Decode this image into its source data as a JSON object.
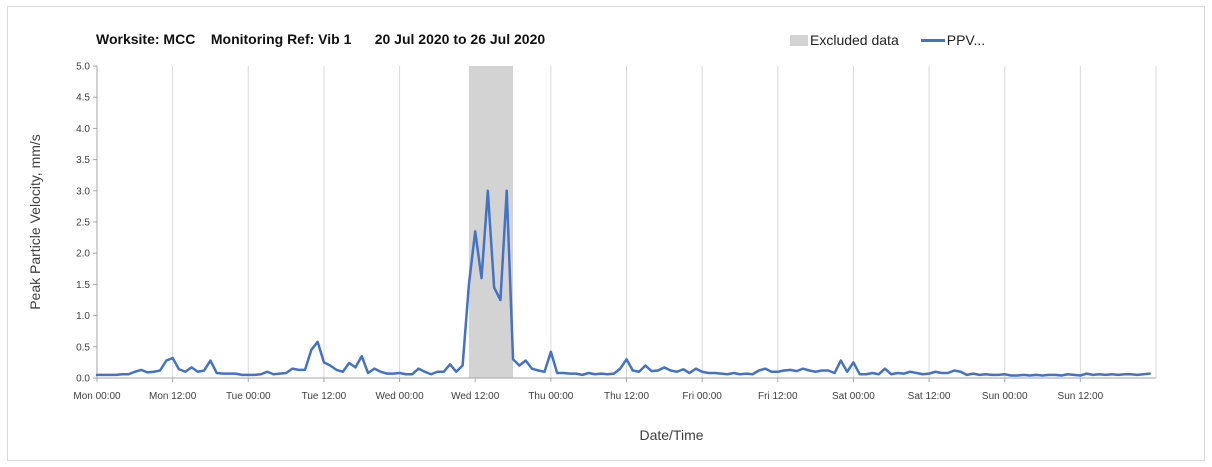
{
  "chart_data": {
    "type": "line",
    "title": "Worksite: MCC    Monitoring Ref: Vib 1      20 Jul 2020 to 26 Jul 2020",
    "xlabel": "Date/Time",
    "ylabel": "Peak Particle Velocity, mm/s",
    "ylim": [
      0,
      5
    ],
    "yticks": [
      "0.0",
      "0.5",
      "1.0",
      "1.5",
      "2.0",
      "2.5",
      "3.0",
      "3.5",
      "4.0",
      "4.5",
      "5.0"
    ],
    "xlim_hours": [
      0,
      168
    ],
    "xticks": [
      {
        "h": 0,
        "label": "Mon 00:00"
      },
      {
        "h": 12,
        "label": "Mon 12:00"
      },
      {
        "h": 24,
        "label": "Tue 00:00"
      },
      {
        "h": 36,
        "label": "Tue 12:00"
      },
      {
        "h": 48,
        "label": "Wed 00:00"
      },
      {
        "h": 60,
        "label": "Wed 12:00"
      },
      {
        "h": 72,
        "label": "Thu 00:00"
      },
      {
        "h": 84,
        "label": "Thu 12:00"
      },
      {
        "h": 96,
        "label": "Fri 00:00"
      },
      {
        "h": 108,
        "label": "Fri 12:00"
      },
      {
        "h": 120,
        "label": "Sat 00:00"
      },
      {
        "h": 132,
        "label": "Sat 12:00"
      },
      {
        "h": 144,
        "label": "Sun 00:00"
      },
      {
        "h": 156,
        "label": "Sun 12:00"
      }
    ],
    "grid": "vertical",
    "legend_position": "top-right",
    "excluded_region_hours": [
      59,
      66
    ],
    "series": [
      {
        "name": "Excluded data",
        "color": "#d3d3d3",
        "kind": "band"
      },
      {
        "name": "PPV...",
        "color": "#4472c4",
        "kind": "line",
        "points": [
          [
            0,
            0.05
          ],
          [
            1,
            0.05
          ],
          [
            2,
            0.05
          ],
          [
            3,
            0.05
          ],
          [
            4,
            0.06
          ],
          [
            5,
            0.06
          ],
          [
            6,
            0.1
          ],
          [
            7,
            0.13
          ],
          [
            8,
            0.09
          ],
          [
            9,
            0.1
          ],
          [
            10,
            0.12
          ],
          [
            11,
            0.28
          ],
          [
            12,
            0.32
          ],
          [
            13,
            0.14
          ],
          [
            14,
            0.1
          ],
          [
            15,
            0.17
          ],
          [
            16,
            0.1
          ],
          [
            17,
            0.12
          ],
          [
            18,
            0.28
          ],
          [
            19,
            0.08
          ],
          [
            20,
            0.07
          ],
          [
            21,
            0.07
          ],
          [
            22,
            0.07
          ],
          [
            23,
            0.05
          ],
          [
            24,
            0.05
          ],
          [
            25,
            0.05
          ],
          [
            26,
            0.06
          ],
          [
            27,
            0.1
          ],
          [
            28,
            0.06
          ],
          [
            29,
            0.07
          ],
          [
            30,
            0.08
          ],
          [
            31,
            0.15
          ],
          [
            32,
            0.13
          ],
          [
            33,
            0.13
          ],
          [
            34,
            0.45
          ],
          [
            35,
            0.58
          ],
          [
            36,
            0.25
          ],
          [
            37,
            0.2
          ],
          [
            38,
            0.13
          ],
          [
            39,
            0.1
          ],
          [
            40,
            0.24
          ],
          [
            41,
            0.17
          ],
          [
            42,
            0.35
          ],
          [
            43,
            0.08
          ],
          [
            44,
            0.15
          ],
          [
            45,
            0.1
          ],
          [
            46,
            0.07
          ],
          [
            47,
            0.07
          ],
          [
            48,
            0.08
          ],
          [
            49,
            0.06
          ],
          [
            50,
            0.06
          ],
          [
            51,
            0.15
          ],
          [
            52,
            0.1
          ],
          [
            53,
            0.06
          ],
          [
            54,
            0.1
          ],
          [
            55,
            0.1
          ],
          [
            56,
            0.22
          ],
          [
            57,
            0.1
          ],
          [
            58,
            0.2
          ],
          [
            59,
            1.5
          ],
          [
            60,
            2.35
          ],
          [
            61,
            1.6
          ],
          [
            62,
            3.0
          ],
          [
            63,
            1.45
          ],
          [
            64,
            1.25
          ],
          [
            65,
            3.0
          ],
          [
            66,
            0.3
          ],
          [
            67,
            0.2
          ],
          [
            68,
            0.28
          ],
          [
            69,
            0.15
          ],
          [
            70,
            0.12
          ],
          [
            71,
            0.1
          ],
          [
            72,
            0.42
          ],
          [
            73,
            0.08
          ],
          [
            74,
            0.08
          ],
          [
            75,
            0.07
          ],
          [
            76,
            0.07
          ],
          [
            77,
            0.05
          ],
          [
            78,
            0.08
          ],
          [
            79,
            0.06
          ],
          [
            80,
            0.07
          ],
          [
            81,
            0.06
          ],
          [
            82,
            0.07
          ],
          [
            83,
            0.15
          ],
          [
            84,
            0.3
          ],
          [
            85,
            0.12
          ],
          [
            86,
            0.1
          ],
          [
            87,
            0.2
          ],
          [
            88,
            0.11
          ],
          [
            89,
            0.12
          ],
          [
            90,
            0.17
          ],
          [
            91,
            0.12
          ],
          [
            92,
            0.1
          ],
          [
            93,
            0.14
          ],
          [
            94,
            0.08
          ],
          [
            95,
            0.15
          ],
          [
            96,
            0.1
          ],
          [
            97,
            0.08
          ],
          [
            98,
            0.08
          ],
          [
            99,
            0.07
          ],
          [
            100,
            0.06
          ],
          [
            101,
            0.08
          ],
          [
            102,
            0.06
          ],
          [
            103,
            0.07
          ],
          [
            104,
            0.06
          ],
          [
            105,
            0.12
          ],
          [
            106,
            0.15
          ],
          [
            107,
            0.1
          ],
          [
            108,
            0.1
          ],
          [
            109,
            0.12
          ],
          [
            110,
            0.13
          ],
          [
            111,
            0.11
          ],
          [
            112,
            0.15
          ],
          [
            113,
            0.12
          ],
          [
            114,
            0.1
          ],
          [
            115,
            0.12
          ],
          [
            116,
            0.12
          ],
          [
            117,
            0.08
          ],
          [
            118,
            0.28
          ],
          [
            119,
            0.1
          ],
          [
            120,
            0.25
          ],
          [
            121,
            0.06
          ],
          [
            122,
            0.06
          ],
          [
            123,
            0.08
          ],
          [
            124,
            0.06
          ],
          [
            125,
            0.15
          ],
          [
            126,
            0.06
          ],
          [
            127,
            0.08
          ],
          [
            128,
            0.07
          ],
          [
            129,
            0.1
          ],
          [
            130,
            0.08
          ],
          [
            131,
            0.06
          ],
          [
            132,
            0.07
          ],
          [
            133,
            0.1
          ],
          [
            134,
            0.08
          ],
          [
            135,
            0.08
          ],
          [
            136,
            0.12
          ],
          [
            137,
            0.1
          ],
          [
            138,
            0.05
          ],
          [
            139,
            0.07
          ],
          [
            140,
            0.05
          ],
          [
            141,
            0.06
          ],
          [
            142,
            0.05
          ],
          [
            143,
            0.05
          ],
          [
            144,
            0.06
          ],
          [
            145,
            0.04
          ],
          [
            146,
            0.04
          ],
          [
            147,
            0.05
          ],
          [
            148,
            0.04
          ],
          [
            149,
            0.05
          ],
          [
            150,
            0.04
          ],
          [
            151,
            0.05
          ],
          [
            152,
            0.05
          ],
          [
            153,
            0.04
          ],
          [
            154,
            0.06
          ],
          [
            155,
            0.05
          ],
          [
            156,
            0.04
          ],
          [
            157,
            0.07
          ],
          [
            158,
            0.05
          ],
          [
            159,
            0.06
          ],
          [
            160,
            0.05
          ],
          [
            161,
            0.06
          ],
          [
            162,
            0.05
          ],
          [
            163,
            0.06
          ],
          [
            164,
            0.06
          ],
          [
            165,
            0.05
          ],
          [
            166,
            0.06
          ],
          [
            167,
            0.07
          ]
        ]
      }
    ]
  }
}
